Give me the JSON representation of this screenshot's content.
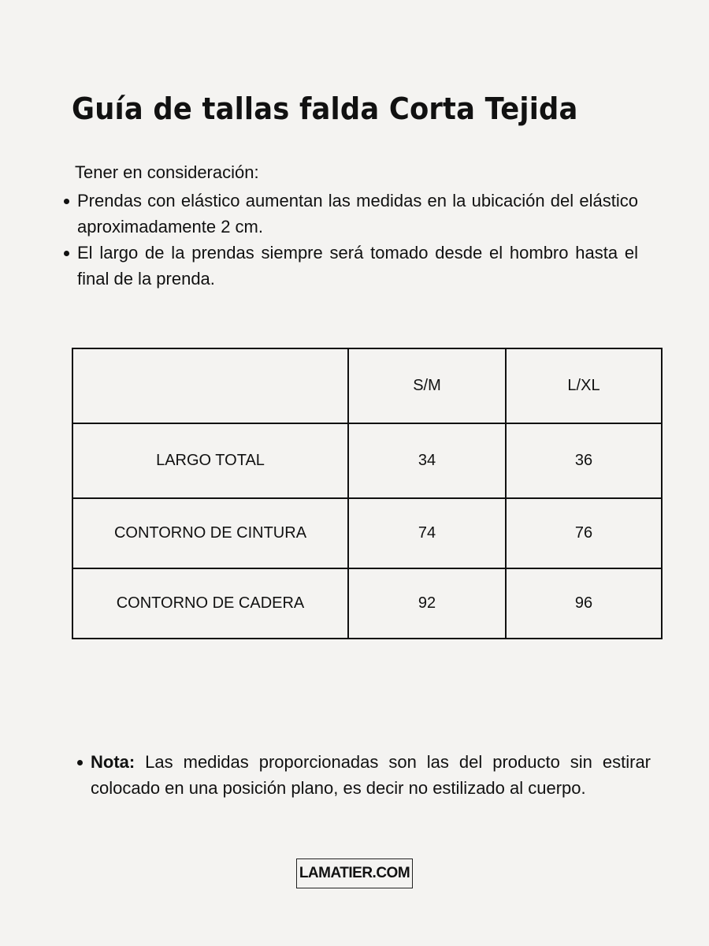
{
  "title": "Guía de tallas falda Corta Tejida",
  "intro": "Tener en consideración:",
  "bullets": [
    "Prendas con elástico aumentan las medidas en la ubicación del elástico aproximadamente 2 cm.",
    "El largo de la prendas siempre será tomado desde el hombro hasta el final de la prenda."
  ],
  "table": {
    "headers": [
      "",
      "S/M",
      "L/XL"
    ],
    "rows": [
      [
        "LARGO TOTAL",
        "34",
        "36"
      ],
      [
        "CONTORNO DE CINTURA",
        "74",
        "76"
      ],
      [
        "CONTORNO DE CADERA",
        "92",
        "96"
      ]
    ]
  },
  "note": {
    "label": "Nota:",
    "text": " Las medidas proporcionadas son las del producto sin estirar colocado en una posición plano, es decir no estilizado al cuerpo."
  },
  "logo": "LAMATIER.COM"
}
